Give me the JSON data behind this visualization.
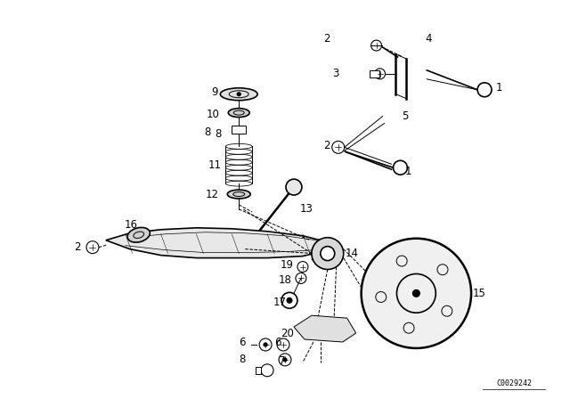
{
  "bg_color": "#ffffff",
  "line_color": "#000000",
  "fig_width": 6.4,
  "fig_height": 4.48,
  "dpi": 100,
  "watermark": "C0029242"
}
